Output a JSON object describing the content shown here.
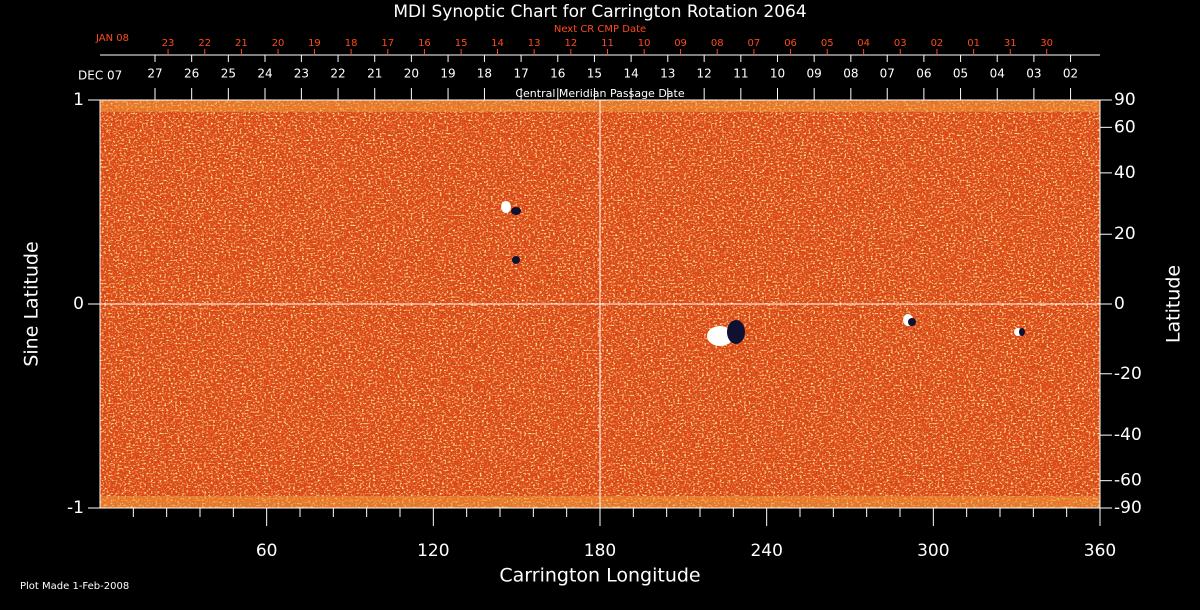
{
  "chart_data": {
    "type": "synoptic-map",
    "title": "MDI Synoptic Chart for Carrington Rotation 2064",
    "x_label": "Carrington Longitude",
    "y_label": "Sine Latitude",
    "y2_label": "Latitude",
    "footnote": "Plot Made  1-Feb-2008",
    "xlim": [
      0,
      360
    ],
    "xticks": [
      60,
      120,
      180,
      240,
      300,
      360
    ],
    "xminorticks": [
      12,
      24,
      36,
      48,
      72,
      84,
      96,
      108,
      132,
      144,
      156,
      168,
      192,
      204,
      216,
      228,
      252,
      264,
      276,
      288,
      312,
      324,
      336,
      348
    ],
    "ylim": [
      -1,
      1
    ],
    "yticks": [
      -1,
      0,
      1
    ],
    "y2lim": [
      -90,
      90
    ],
    "y2ticks": [
      90,
      60,
      40,
      20,
      0,
      -20,
      -40,
      -60,
      -90
    ],
    "y2scale": "sine",
    "grid_x": [
      180
    ],
    "grid_y": [
      0
    ],
    "cmp_axis": {
      "title": "Central Meridian Passage Date",
      "start_label": "DEC 07",
      "labels": [
        "27",
        "26",
        "25",
        "24",
        "23",
        "22",
        "21",
        "20",
        "19",
        "18",
        "17",
        "16",
        "15",
        "14",
        "13",
        "12",
        "11",
        "10",
        "09",
        "08",
        "07",
        "06",
        "05",
        "04",
        "03",
        "02"
      ],
      "x": [
        19.8,
        33,
        46.2,
        59.4,
        72.5,
        85.7,
        98.9,
        112.1,
        125.3,
        138.4,
        151.6,
        164.8,
        178,
        191.2,
        204.4,
        217.5,
        230.7,
        243.9,
        257.1,
        270.3,
        283.4,
        296.6,
        309.8,
        323,
        336.2,
        349.4
      ]
    },
    "next_cmp_axis": {
      "title": "Next CR CMP Date",
      "start_label": "JAN 08",
      "labels": [
        "23",
        "22",
        "21",
        "20",
        "19",
        "18",
        "17",
        "16",
        "15",
        "14",
        "13",
        "12",
        "11",
        "10",
        "09",
        "08",
        "07",
        "06",
        "05",
        "04",
        "03",
        "02",
        "01",
        "31",
        "30"
      ],
      "x": [
        24.5,
        37.7,
        50.9,
        64.1,
        77.2,
        90.4,
        103.6,
        116.8,
        130,
        143.1,
        156.3,
        169.5,
        182.7,
        195.9,
        209,
        222.2,
        235.4,
        248.6,
        261.8,
        274.9,
        288.1,
        301.3,
        314.5,
        327.7,
        340.8
      ]
    }
  }
}
